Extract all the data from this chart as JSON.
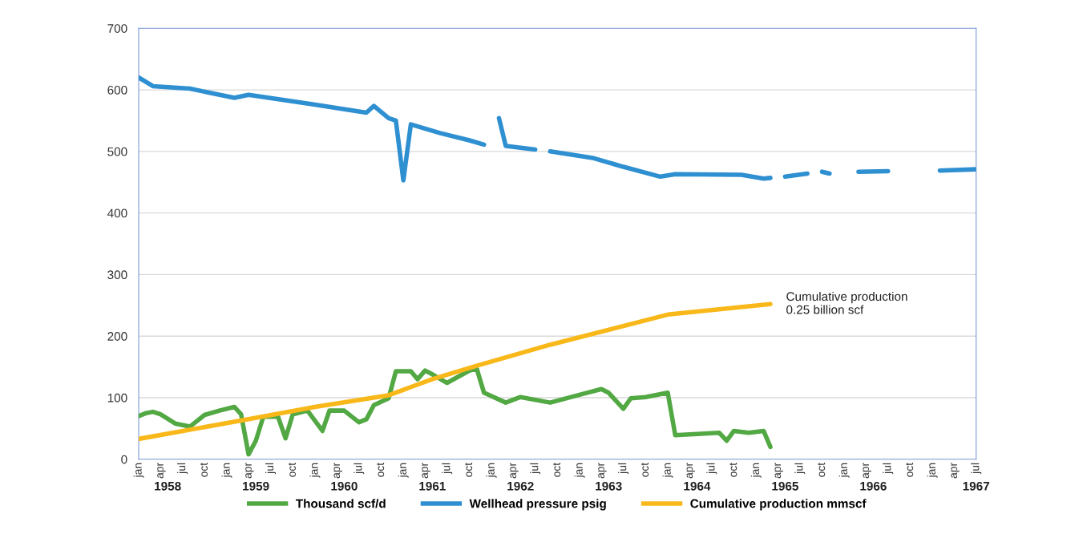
{
  "chart_data": {
    "type": "line",
    "xlim": [
      "1958-01",
      "1967-07"
    ],
    "xticks": [
      {
        "value": "1958-01",
        "label": "jan"
      },
      {
        "value": "1958-04",
        "label": "apr"
      },
      {
        "value": "1958-07",
        "label": "jul"
      },
      {
        "value": "1958-10",
        "label": "oct"
      },
      {
        "value": "1959-01",
        "label": "jan"
      },
      {
        "value": "1959-04",
        "label": "apr"
      },
      {
        "value": "1959-07",
        "label": "jul"
      },
      {
        "value": "1959-10",
        "label": "oct"
      },
      {
        "value": "1960-01",
        "label": "jan"
      },
      {
        "value": "1960-04",
        "label": "apr"
      },
      {
        "value": "1960-07",
        "label": "jul"
      },
      {
        "value": "1960-10",
        "label": "oct"
      },
      {
        "value": "1961-01",
        "label": "jan"
      },
      {
        "value": "1961-04",
        "label": "apr"
      },
      {
        "value": "1961-07",
        "label": "jul"
      },
      {
        "value": "1961-10",
        "label": "oct"
      },
      {
        "value": "1962-01",
        "label": "jan"
      },
      {
        "value": "1962-04",
        "label": "apr"
      },
      {
        "value": "1962-07",
        "label": "jul"
      },
      {
        "value": "1962-10",
        "label": "oct"
      },
      {
        "value": "1963-01",
        "label": "jan"
      },
      {
        "value": "1963-04",
        "label": "apr"
      },
      {
        "value": "1963-07",
        "label": "jul"
      },
      {
        "value": "1963-10",
        "label": "oct"
      },
      {
        "value": "1964-01",
        "label": "jan"
      },
      {
        "value": "1964-04",
        "label": "apr"
      },
      {
        "value": "1964-07",
        "label": "jul"
      },
      {
        "value": "1964-10",
        "label": "oct"
      },
      {
        "value": "1965-01",
        "label": "jan"
      },
      {
        "value": "1965-04",
        "label": "apr"
      },
      {
        "value": "1965-07",
        "label": "jul"
      },
      {
        "value": "1965-10",
        "label": "oct"
      },
      {
        "value": "1966-01",
        "label": "jan"
      },
      {
        "value": "1966-04",
        "label": "apr"
      },
      {
        "value": "1966-07",
        "label": "jul"
      },
      {
        "value": "1966-10",
        "label": "oct"
      },
      {
        "value": "1967-01",
        "label": "jan"
      },
      {
        "value": "1967-04",
        "label": "apr"
      },
      {
        "value": "1967-07",
        "label": "jul"
      }
    ],
    "x2lim": [
      "1958-01",
      "1967-07"
    ],
    "x2ticks": [
      {
        "value": "1958-05",
        "label": "1958"
      },
      {
        "value": "1959-05",
        "label": "1959"
      },
      {
        "value": "1960-05",
        "label": "1960"
      },
      {
        "value": "1961-05",
        "label": "1961"
      },
      {
        "value": "1962-05",
        "label": "1962"
      },
      {
        "value": "1963-05",
        "label": "1963"
      },
      {
        "value": "1964-05",
        "label": "1964"
      },
      {
        "value": "1965-05",
        "label": "1965"
      },
      {
        "value": "1966-05",
        "label": "1966"
      },
      {
        "value": "1967-07",
        "label": "1967"
      }
    ],
    "ylim": [
      0,
      700
    ],
    "yticks": [
      0,
      100,
      200,
      300,
      400,
      500,
      600,
      700
    ],
    "grid": "y",
    "legend": "bottom",
    "line_style": "solid",
    "marker": "none",
    "series": [
      {
        "name": "Thousand scf/d",
        "color": "#52a843",
        "x": [
          "1958-01",
          "1958-02",
          "1958-03",
          "1958-04",
          "1958-06",
          "1958-08",
          "1958-10",
          "1958-12",
          "1959-02",
          "1959-03",
          "1959-04",
          "1959-05",
          "1959-06",
          "1959-08",
          "1959-09",
          "1959-10",
          "1959-12",
          "1960-02",
          "1960-03",
          "1960-05",
          "1960-07",
          "1960-08",
          "1960-09",
          "1960-11",
          "1960-12",
          "1961-02",
          "1961-03",
          "1961-04",
          "1961-05",
          "1961-07",
          "1961-10",
          "1961-11",
          "1961-12",
          "1962-03",
          "1962-05",
          "1962-09",
          "1963-02",
          "1963-04",
          "1963-05",
          "1963-07",
          "1963-08",
          "1963-10",
          "1964-01",
          "1964-02",
          "1964-08",
          "1964-09",
          "1964-10",
          "1964-12",
          "1965-02",
          "1965-03"
        ],
        "values": [
          70,
          75,
          77,
          73,
          58,
          53,
          72,
          79,
          85,
          73,
          8,
          30,
          69,
          69,
          34,
          73,
          79,
          46,
          79,
          79,
          60,
          65,
          88,
          99,
          143,
          143,
          130,
          144,
          138,
          124,
          144,
          147,
          108,
          92,
          101,
          92,
          108,
          114,
          108,
          82,
          99,
          101,
          108,
          39,
          43,
          30,
          46,
          43,
          46,
          20
        ]
      },
      {
        "name": "Wellhead pressure psig",
        "color": "#2e8fd1",
        "x": [
          "1958-01",
          "1958-03",
          "1958-08",
          "1959-02",
          "1959-04",
          "1960-01",
          "1960-08",
          "1960-09",
          "1960-11",
          "1960-12",
          "1961-01",
          "1961-02",
          "1961-06",
          "1961-10",
          "1961-12",
          "1962-01",
          "1962-02",
          "1962-03",
          "1962-07",
          "1962-08",
          "1962-09",
          "1963-03",
          "1963-07",
          "1963-12",
          "1964-02",
          "1964-11",
          "1965-02",
          "1965-03",
          "1965-04",
          "1965-05",
          "1965-08",
          "1965-09",
          "1965-10",
          "1965-11",
          "1966-01",
          "1966-03",
          "1966-07",
          "1966-11",
          "1967-02",
          "1967-07"
        ],
        "values": [
          620,
          606,
          602,
          587,
          592,
          576,
          563,
          574,
          554,
          550,
          453,
          544,
          530,
          518,
          511,
          null,
          554,
          509,
          503,
          null,
          500,
          489,
          475,
          459,
          463,
          462,
          456,
          457,
          null,
          459,
          464,
          null,
          467,
          464,
          null,
          467,
          468,
          null,
          469,
          471
        ]
      },
      {
        "name": "Cumulative production mmscf",
        "color": "#f9b81a",
        "x": [
          "1958-01",
          "1959-04",
          "1960-01",
          "1960-11",
          "1961-05",
          "1961-11",
          "1962-09",
          "1964-01",
          "1965-03"
        ],
        "values": [
          33,
          65,
          85,
          104,
          130,
          152,
          186,
          235,
          252
        ]
      }
    ],
    "annotations": [
      {
        "text": "Cumulative production\n0.25 billion scf",
        "x": "1965-03",
        "y": 252
      }
    ]
  }
}
